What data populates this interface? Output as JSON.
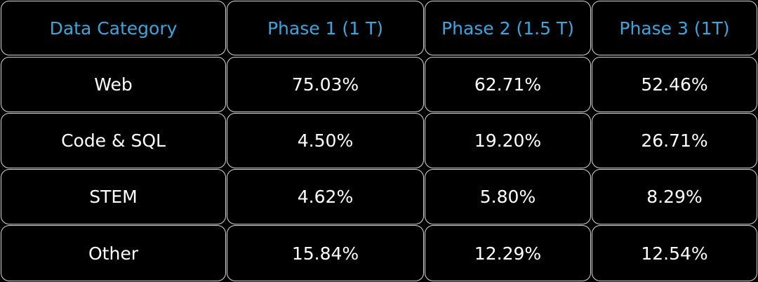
{
  "chart_data": {
    "type": "table",
    "columns": [
      "Data Category",
      "Phase 1 (1 T)",
      "Phase 2 (1.5 T)",
      "Phase 3 (1T)"
    ],
    "rows": [
      {
        "category": "Web",
        "values": [
          "75.03%",
          "62.71%",
          "52.46%"
        ]
      },
      {
        "category": "Code & SQL",
        "values": [
          "4.50%",
          "19.20%",
          "26.71%"
        ]
      },
      {
        "category": "STEM",
        "values": [
          "4.62%",
          "5.80%",
          "8.29%"
        ]
      },
      {
        "category": "Other",
        "values": [
          "15.84%",
          "12.29%",
          "12.54%"
        ]
      }
    ]
  },
  "colors": {
    "header_text": "#3aa6dd",
    "body_text": "#ffffff",
    "cell_border": "#d9d9d9",
    "background": "#000000"
  }
}
